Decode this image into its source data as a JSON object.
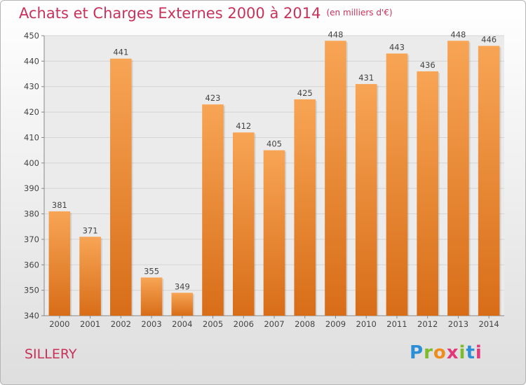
{
  "header": {
    "title": "Achats et Charges Externes 2000 à 2014",
    "unit": "(en milliers d'€)"
  },
  "footer": {
    "place": "SILLERY",
    "logo_letters": [
      "P",
      "r",
      "o",
      "x",
      "i",
      "t",
      "i"
    ]
  },
  "colors": {
    "bar_light": "#f7a555",
    "bar_dark": "#d86d18",
    "grid": "#d4d4d4",
    "title": "#c8325a"
  },
  "chart_data": {
    "type": "bar",
    "title": "Achats et Charges Externes 2000 à 2014",
    "subtitle": "(en milliers d'€)",
    "xlabel": "",
    "ylabel": "",
    "categories": [
      "2000",
      "2001",
      "2002",
      "2003",
      "2004",
      "2005",
      "2006",
      "2007",
      "2008",
      "2009",
      "2010",
      "2011",
      "2012",
      "2013",
      "2014"
    ],
    "values": [
      381,
      371,
      441,
      355,
      349,
      423,
      412,
      405,
      425,
      448,
      431,
      443,
      436,
      448,
      446
    ],
    "ylim": [
      340,
      450
    ],
    "yticks": [
      340,
      350,
      360,
      370,
      380,
      390,
      400,
      410,
      420,
      430,
      440,
      450
    ],
    "grid": true,
    "legend": "none"
  }
}
